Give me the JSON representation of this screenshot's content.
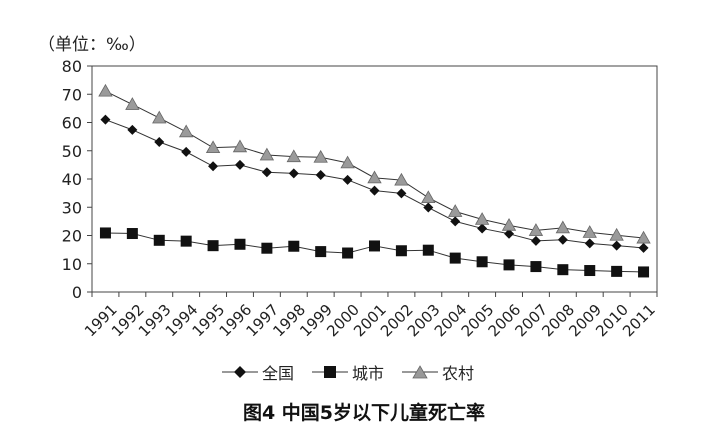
{
  "unit_label": "（单位：‰）",
  "caption": "图4  中国5岁以下儿童死亡率",
  "legend": [
    {
      "label": "全国",
      "marker": "diamond"
    },
    {
      "label": "城市",
      "marker": "square"
    },
    {
      "label": "农村",
      "marker": "triangle"
    }
  ],
  "chart_data": {
    "type": "line",
    "title": "图4  中国5岁以下儿童死亡率",
    "ylabel": "（单位：‰）",
    "xlabel": "",
    "x": [
      "1991",
      "1992",
      "1993",
      "1994",
      "1995",
      "1996",
      "1997",
      "1998",
      "1999",
      "2000",
      "2001",
      "2002",
      "2003",
      "2004",
      "2005",
      "2006",
      "2007",
      "2008",
      "2009",
      "2010",
      "2011"
    ],
    "ylim": [
      0,
      80
    ],
    "yticks": [
      0,
      10,
      20,
      30,
      40,
      50,
      60,
      70,
      80
    ],
    "grid": false,
    "legend_position": "bottom",
    "series": [
      {
        "name": "全国",
        "marker": "diamond",
        "color": "#111111",
        "values": [
          61.0,
          57.4,
          53.1,
          49.6,
          44.5,
          45.0,
          42.4,
          42.0,
          41.4,
          39.7,
          35.9,
          34.9,
          29.9,
          25.0,
          22.5,
          20.6,
          18.1,
          18.5,
          17.2,
          16.4,
          15.6
        ]
      },
      {
        "name": "城市",
        "marker": "square",
        "color": "#111111",
        "values": [
          20.9,
          20.7,
          18.3,
          18.0,
          16.4,
          16.9,
          15.5,
          16.2,
          14.3,
          13.8,
          16.3,
          14.6,
          14.8,
          12.0,
          10.7,
          9.6,
          9.0,
          7.9,
          7.6,
          7.3,
          7.1
        ]
      },
      {
        "name": "农村",
        "marker": "triangle",
        "color": "#888888",
        "values": [
          71.1,
          66.4,
          61.6,
          56.7,
          51.1,
          51.4,
          48.5,
          47.9,
          47.7,
          45.7,
          40.4,
          39.6,
          33.4,
          28.5,
          25.7,
          23.6,
          21.8,
          22.7,
          21.1,
          20.1,
          19.1
        ]
      }
    ]
  }
}
